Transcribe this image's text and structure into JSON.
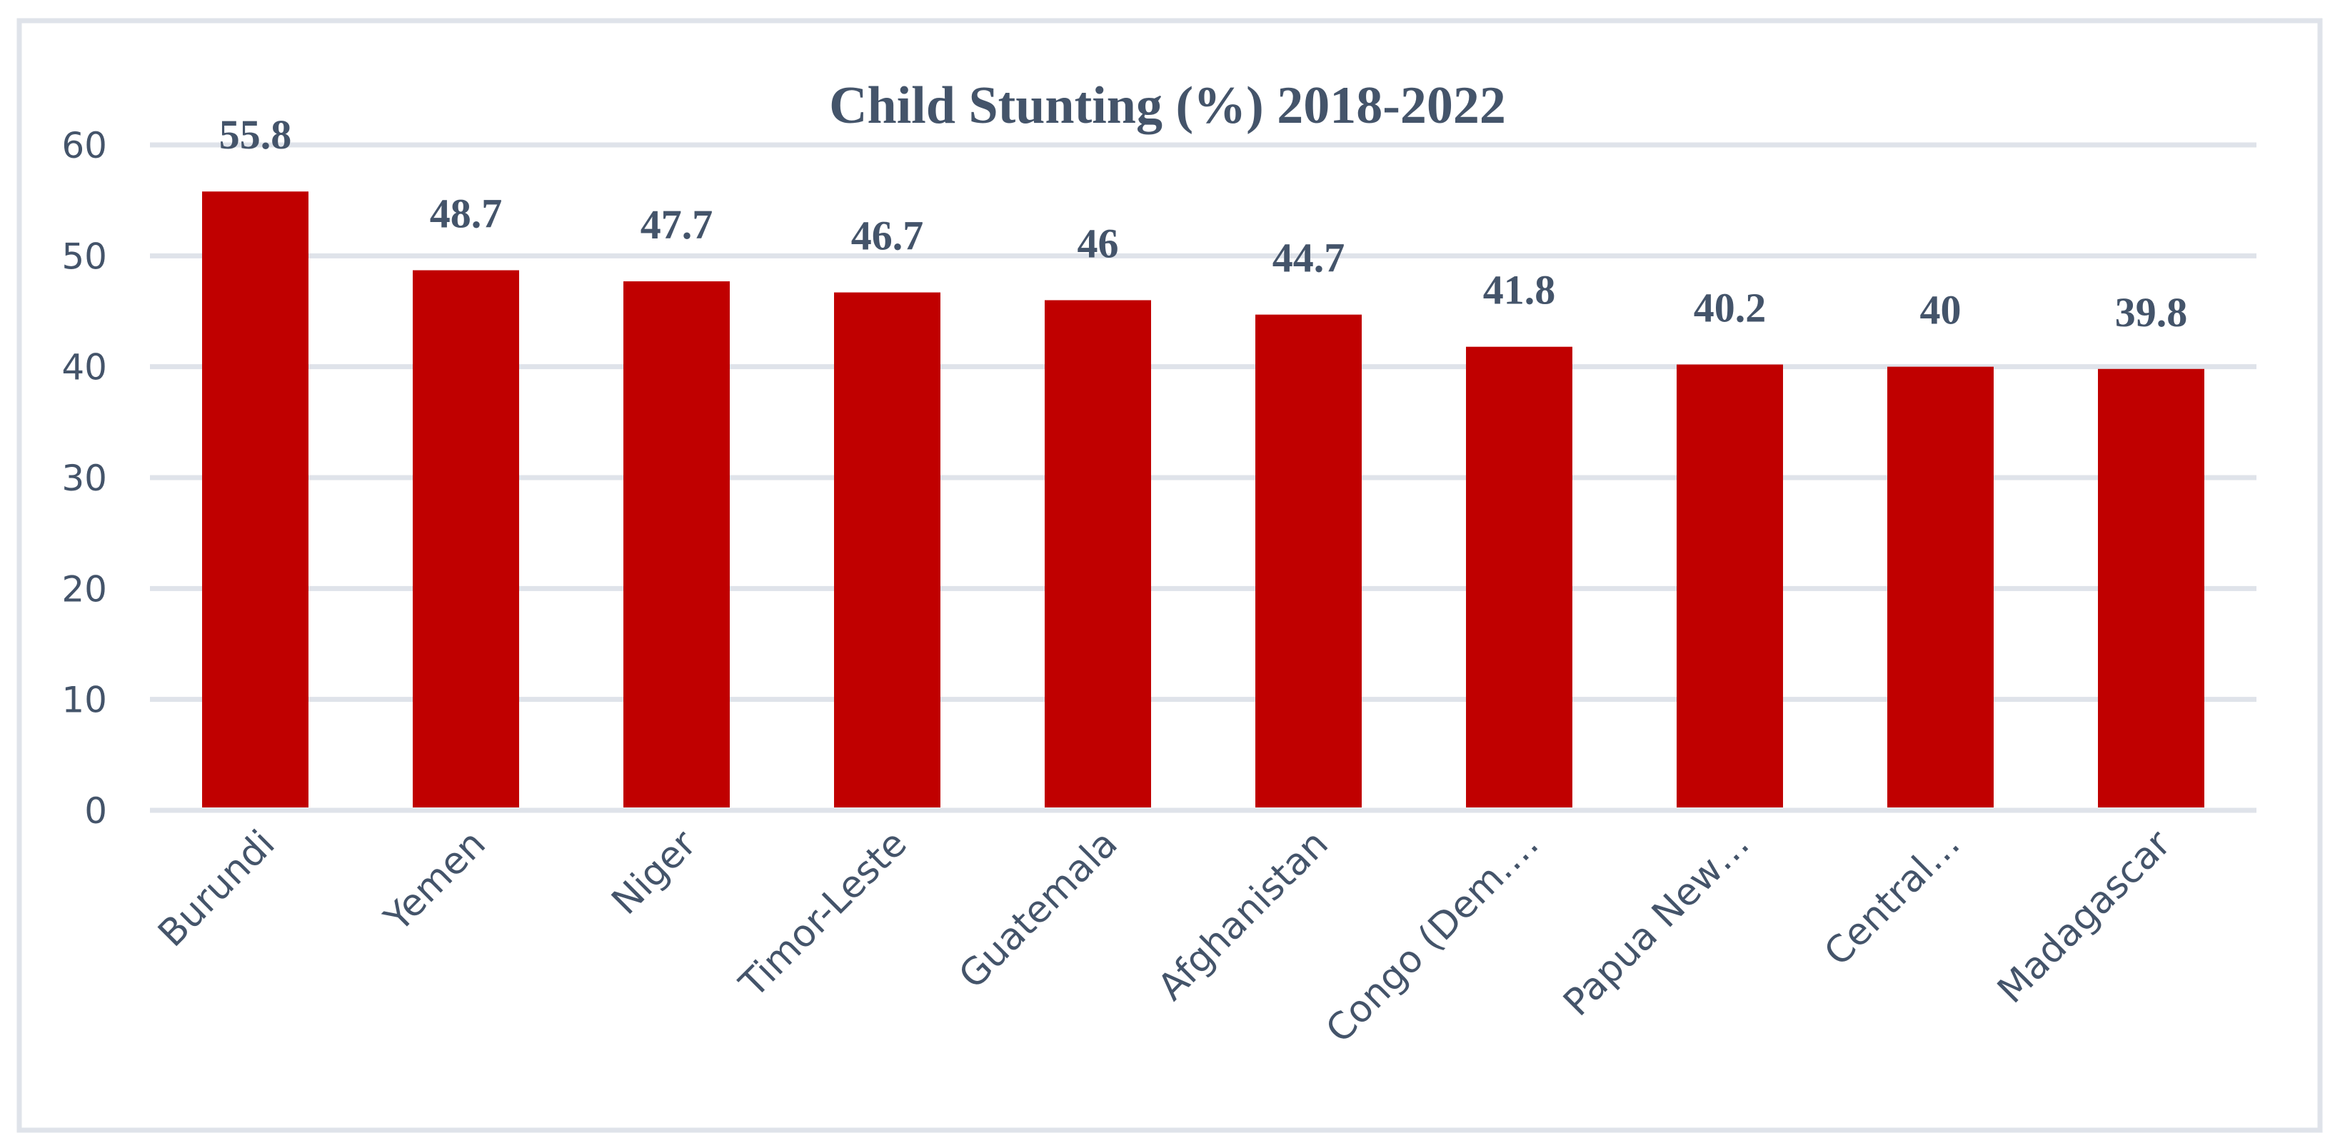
{
  "chart_data": {
    "type": "bar",
    "title": "Child Stunting (%) 2018-2022",
    "xlabel": "",
    "ylabel": "",
    "categories": [
      "Burundi",
      "Yemen",
      "Niger",
      "Timor-Leste",
      "Guatemala",
      "Afghanistan",
      "Congo (Dem.…",
      "Papua New…",
      "Central…",
      "Madagascar"
    ],
    "values": [
      55.8,
      48.7,
      47.7,
      46.7,
      46,
      44.7,
      41.8,
      40.2,
      40,
      39.8
    ],
    "data_labels": [
      "55.8",
      "48.7",
      "47.7",
      "46.7",
      "46",
      "44.7",
      "41.8",
      "40.2",
      "40",
      "39.8"
    ],
    "ylim": [
      0,
      60
    ],
    "yticks": [
      "0",
      "10",
      "20",
      "30",
      "40",
      "50",
      "60"
    ],
    "grid": true,
    "legend": "none",
    "colors": {
      "bar": "#C00000",
      "text": "#44546A",
      "grid": "#DFE3EA",
      "frame": "#DFE3EA"
    }
  }
}
